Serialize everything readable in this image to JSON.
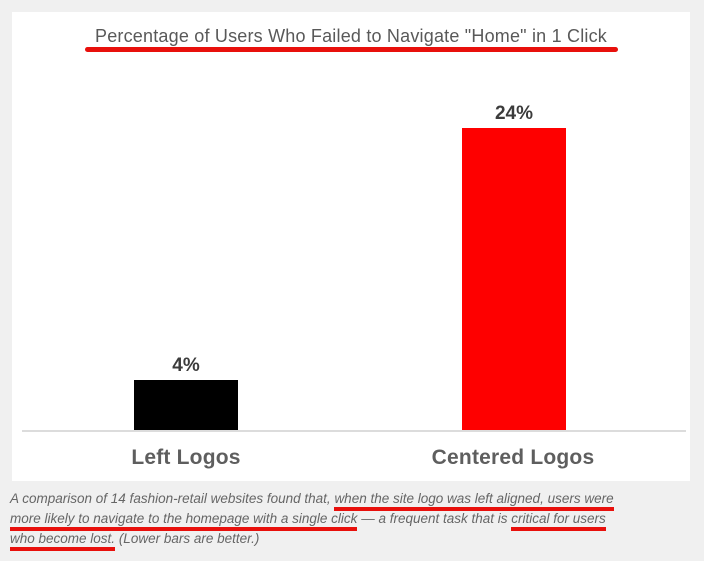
{
  "chart_data": {
    "type": "bar",
    "title": "Percentage of Users Who Failed to Navigate \"Home\" in 1 Click",
    "categories": [
      "Left Logos",
      "Centered Logos"
    ],
    "values": [
      4,
      24
    ],
    "value_labels": [
      "4%",
      "24%"
    ],
    "series_colors": [
      "#000000",
      "#fe0000"
    ],
    "xlabel": "",
    "ylabel": "",
    "ylim": [
      0,
      26
    ],
    "grid": false,
    "legend": "none",
    "annotations": [
      "title underlined with thick red marker line",
      "key caption phrases underlined with thick red marker lines",
      "lower bars are better"
    ]
  },
  "caption": {
    "lines": [
      {
        "segments": [
          {
            "text": "A comparison of 14 fashion-retail websites found that, ",
            "marked": false
          },
          {
            "text": "when the site logo was left aligned, users were",
            "marked": true
          }
        ]
      },
      {
        "segments": [
          {
            "text": "more likely to navigate to the homepage with a single click",
            "marked": true
          },
          {
            "text": " — a frequent task that is ",
            "marked": false
          },
          {
            "text": "critical for users",
            "marked": true
          }
        ]
      },
      {
        "segments": [
          {
            "text": "who become lost.",
            "marked": true
          },
          {
            "text": " (Lower bars are better.)",
            "marked": false
          }
        ]
      }
    ]
  },
  "colors": {
    "page_background": "#f0f0f0",
    "card_background": "#ffffff",
    "bar_left": "#000000",
    "bar_right": "#fe0000",
    "marker_red": "#e8100c",
    "title_text": "#595959",
    "value_label_text": "#3c3c3c",
    "category_label_text": "#5e5e5e",
    "caption_text": "#666666",
    "axis_line": "#dcdcdc"
  }
}
